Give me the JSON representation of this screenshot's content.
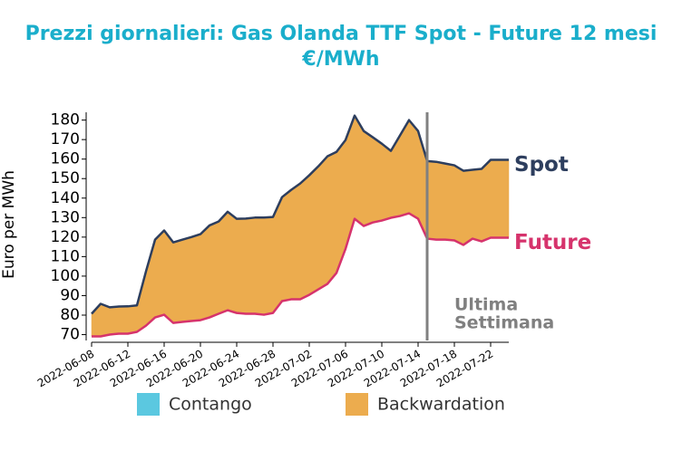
{
  "chart_data": {
    "type": "area-between",
    "title": "Prezzi giornalieri: Gas Olanda TTF Spot - Future 12 mesi",
    "subtitle": "€/MWh",
    "y_label": "Euro per MWh",
    "x": [
      "2022-06-08",
      "2022-06-09",
      "2022-06-10",
      "2022-06-11",
      "2022-06-12",
      "2022-06-13",
      "2022-06-14",
      "2022-06-15",
      "2022-06-16",
      "2022-06-17",
      "2022-06-18",
      "2022-06-19",
      "2022-06-20",
      "2022-06-21",
      "2022-06-22",
      "2022-06-23",
      "2022-06-24",
      "2022-06-25",
      "2022-06-26",
      "2022-06-27",
      "2022-06-28",
      "2022-06-29",
      "2022-06-30",
      "2022-07-01",
      "2022-07-02",
      "2022-07-03",
      "2022-07-04",
      "2022-07-05",
      "2022-07-06",
      "2022-07-07",
      "2022-07-08",
      "2022-07-09",
      "2022-07-10",
      "2022-07-11",
      "2022-07-12",
      "2022-07-13",
      "2022-07-14",
      "2022-07-15",
      "2022-07-16",
      "2022-07-17",
      "2022-07-18",
      "2022-07-19",
      "2022-07-20",
      "2022-07-21",
      "2022-07-22",
      "2022-07-23",
      "2022-07-24"
    ],
    "series": [
      {
        "name": "Spot",
        "color": "#2d3e5e",
        "values": [
          80.7,
          85.8,
          84,
          84.4,
          84.5,
          85,
          102.5,
          118.7,
          123.4,
          117.3,
          118.7,
          120,
          121.5,
          126,
          128,
          133,
          129.4,
          129.5,
          130,
          130,
          130.3,
          140.5,
          144.2,
          147.5,
          151.7,
          156.3,
          161.4,
          163.7,
          169.8,
          182.3,
          174.4,
          171.2,
          167.9,
          164.2,
          172.1,
          180,
          174.4,
          159,
          158.6,
          157.7,
          156.8,
          154,
          154.5,
          155,
          159.6,
          159.6,
          159.6
        ]
      },
      {
        "name": "Future",
        "color": "#d6336c",
        "values": [
          69.1,
          69.1,
          70,
          70.5,
          70.5,
          71.4,
          74.6,
          78.8,
          80.2,
          76,
          76.5,
          77,
          77.4,
          78.8,
          80.7,
          82.5,
          81.1,
          80.7,
          80.7,
          80.2,
          81.1,
          87.2,
          88.1,
          88.1,
          90.4,
          93.2,
          96,
          101.6,
          114,
          129.4,
          125.7,
          127.5,
          128.5,
          129.9,
          130.8,
          132.2,
          129.4,
          119.2,
          118.7,
          118.7,
          118.3,
          116,
          119.2,
          117.8,
          119.7,
          119.7,
          119.7
        ]
      }
    ],
    "fill_legend": [
      {
        "name": "Contango",
        "color": "#5bc8e0"
      },
      {
        "name": "Backwardation",
        "color": "#ecac4e"
      }
    ],
    "vline": {
      "x": "2022-07-15",
      "color": "#808080",
      "label": [
        "Ultima",
        "Settimana"
      ]
    },
    "xlim": [
      "2022-06-08",
      "2022-07-24"
    ],
    "xticks": [
      "2022-06-08",
      "2022-06-12",
      "2022-06-16",
      "2022-06-20",
      "2022-06-24",
      "2022-06-28",
      "2022-07-02",
      "2022-07-06",
      "2022-07-10",
      "2022-07-14",
      "2022-07-18",
      "2022-07-22"
    ],
    "ylim": [
      67,
      184
    ],
    "yticks": [
      70,
      80,
      90,
      100,
      110,
      120,
      130,
      140,
      150,
      160,
      170,
      180
    ]
  }
}
